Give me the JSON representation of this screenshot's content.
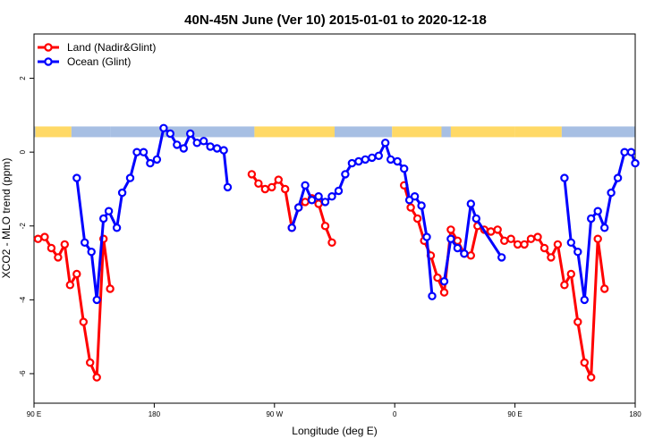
{
  "chart_data": {
    "type": "line",
    "title": "40N-45N June (Ver 10)   2015-01-01 to 2020-12-18",
    "xlabel": "Longitude (deg E)",
    "ylabel": "XCO2 - MLO trend (ppm)",
    "xlim": [
      90,
      540
    ],
    "ylim": [
      -6.8,
      3.2
    ],
    "grid": false,
    "legend_position": "top-left",
    "x_ticks": [
      {
        "value": 90,
        "label": "90 E"
      },
      {
        "value": 180,
        "label": "180"
      },
      {
        "value": 270,
        "label": "90 W"
      },
      {
        "value": 360,
        "label": "0"
      },
      {
        "value": 450,
        "label": "90 E"
      },
      {
        "value": 540,
        "label": "180"
      }
    ],
    "y_ticks": [
      {
        "value": -6,
        "label": "-6"
      },
      {
        "value": -4,
        "label": "-4"
      },
      {
        "value": -2,
        "label": "-2"
      },
      {
        "value": 0,
        "label": "0"
      },
      {
        "value": 2,
        "label": "2"
      }
    ],
    "series": [
      {
        "name": "Land (Nadir&Glint)",
        "color": "#ff0000",
        "segments": [
          [
            [
              93,
              -2.35
            ],
            [
              98,
              -2.3
            ],
            [
              103,
              -2.6
            ],
            [
              108,
              -2.85
            ],
            [
              113,
              -2.5
            ],
            [
              117,
              -3.6
            ],
            [
              122,
              -3.3
            ],
            [
              127,
              -4.6
            ],
            [
              132,
              -5.7
            ],
            [
              137,
              -6.1
            ],
            [
              142,
              -2.35
            ],
            [
              147,
              -3.7
            ]
          ],
          [
            [
              253,
              -0.6
            ],
            [
              258,
              -0.85
            ],
            [
              263,
              -1.0
            ],
            [
              268,
              -0.95
            ],
            [
              273,
              -0.75
            ],
            [
              278,
              -1.0
            ],
            [
              283,
              -2.05
            ],
            [
              288,
              -1.5
            ],
            [
              293,
              -1.35
            ],
            [
              298,
              -1.25
            ],
            [
              303,
              -1.4
            ],
            [
              308,
              -2.0
            ],
            [
              313,
              -2.45
            ]
          ],
          [
            [
              367,
              -0.9
            ],
            [
              372,
              -1.5
            ],
            [
              377,
              -1.8
            ],
            [
              382,
              -2.4
            ],
            [
              387,
              -2.8
            ],
            [
              392,
              -3.4
            ],
            [
              397,
              -3.8
            ],
            [
              402,
              -2.1
            ],
            [
              407,
              -2.4
            ],
            [
              412,
              -2.75
            ],
            [
              417,
              -2.8
            ],
            [
              422,
              -2.0
            ],
            [
              427,
              -2.1
            ],
            [
              432,
              -2.15
            ],
            [
              437,
              -2.1
            ],
            [
              442,
              -2.4
            ],
            [
              447,
              -2.35
            ],
            [
              452,
              -2.5
            ],
            [
              457,
              -2.5
            ],
            [
              462,
              -2.35
            ],
            [
              467,
              -2.3
            ],
            [
              472,
              -2.6
            ],
            [
              477,
              -2.85
            ],
            [
              482,
              -2.5
            ],
            [
              487,
              -3.6
            ],
            [
              492,
              -3.3
            ],
            [
              497,
              -4.6
            ],
            [
              502,
              -5.7
            ],
            [
              507,
              -6.1
            ],
            [
              512,
              -2.35
            ],
            [
              517,
              -3.7
            ]
          ]
        ]
      },
      {
        "name": "Ocean (Glint)",
        "color": "#0000ff",
        "segments": [
          [
            [
              122,
              -0.7
            ],
            [
              128,
              -2.45
            ],
            [
              133,
              -2.7
            ],
            [
              137,
              -4.0
            ],
            [
              142,
              -1.8
            ],
            [
              146,
              -1.6
            ],
            [
              152,
              -2.05
            ],
            [
              156,
              -1.1
            ],
            [
              162,
              -0.7
            ],
            [
              167,
              0.0
            ],
            [
              172,
              0.0
            ],
            [
              177,
              -0.3
            ],
            [
              182,
              -0.2
            ],
            [
              187,
              0.65
            ],
            [
              192,
              0.5
            ],
            [
              197,
              0.2
            ],
            [
              202,
              0.1
            ],
            [
              207,
              0.5
            ],
            [
              212,
              0.25
            ],
            [
              217,
              0.3
            ],
            [
              222,
              0.15
            ],
            [
              227,
              0.1
            ],
            [
              232,
              0.05
            ],
            [
              235,
              -0.95
            ]
          ],
          [
            [
              283,
              -2.05
            ],
            [
              288,
              -1.5
            ],
            [
              293,
              -0.9
            ],
            [
              298,
              -1.3
            ],
            [
              303,
              -1.2
            ],
            [
              308,
              -1.35
            ],
            [
              313,
              -1.2
            ],
            [
              318,
              -1.05
            ],
            [
              323,
              -0.6
            ],
            [
              328,
              -0.3
            ],
            [
              333,
              -0.25
            ],
            [
              338,
              -0.2
            ],
            [
              343,
              -0.15
            ],
            [
              348,
              -0.1
            ],
            [
              353,
              0.25
            ],
            [
              357,
              -0.2
            ],
            [
              362,
              -0.25
            ],
            [
              367,
              -0.45
            ],
            [
              371,
              -1.3
            ],
            [
              375,
              -1.2
            ],
            [
              380,
              -1.45
            ],
            [
              384,
              -2.3
            ],
            [
              388,
              -3.9
            ]
          ],
          [
            [
              397,
              -3.5
            ],
            [
              402,
              -2.35
            ],
            [
              407,
              -2.6
            ],
            [
              412,
              -2.75
            ],
            [
              417,
              -1.4
            ],
            [
              421,
              -1.8
            ],
            [
              440,
              -2.85
            ]
          ],
          [
            [
              487,
              -0.7
            ],
            [
              492,
              -2.45
            ],
            [
              497,
              -2.7
            ],
            [
              502,
              -4.0
            ],
            [
              507,
              -1.8
            ],
            [
              512,
              -1.6
            ],
            [
              517,
              -2.05
            ],
            [
              522,
              -1.1
            ],
            [
              527,
              -0.7
            ],
            [
              532,
              0.0
            ],
            [
              537,
              0.0
            ],
            [
              540,
              -0.3
            ]
          ]
        ]
      }
    ],
    "surface_band": {
      "y_center": 0.55,
      "colors": {
        "land": "#ffd966",
        "ocean": "#a7bfe3"
      },
      "runs": [
        {
          "type": "ocean",
          "from": 90,
          "to": 91
        },
        {
          "type": "land",
          "from": 91,
          "to": 118
        },
        {
          "type": "ocean",
          "from": 118,
          "to": 147
        },
        {
          "type": "ocean",
          "from": 147,
          "to": 255
        },
        {
          "type": "land",
          "from": 255,
          "to": 315
        },
        {
          "type": "ocean",
          "from": 315,
          "to": 358
        },
        {
          "type": "land",
          "from": 358,
          "to": 395
        },
        {
          "type": "ocean",
          "from": 395,
          "to": 402
        },
        {
          "type": "land",
          "from": 402,
          "to": 450
        },
        {
          "type": "land",
          "from": 450,
          "to": 485
        },
        {
          "type": "ocean",
          "from": 485,
          "to": 540
        }
      ]
    }
  }
}
